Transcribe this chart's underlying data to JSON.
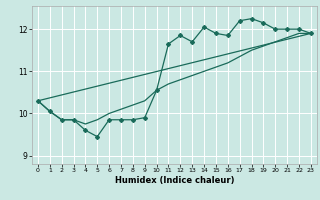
{
  "xlabel": "Humidex (Indice chaleur)",
  "bg_color": "#cbe8e3",
  "line_color": "#1a6b5a",
  "grid_color": "#ffffff",
  "xlim": [
    -0.5,
    23.5
  ],
  "ylim": [
    8.8,
    12.55
  ],
  "yticks": [
    9,
    10,
    11,
    12
  ],
  "xticks": [
    0,
    1,
    2,
    3,
    4,
    5,
    6,
    7,
    8,
    9,
    10,
    11,
    12,
    13,
    14,
    15,
    16,
    17,
    18,
    19,
    20,
    21,
    22,
    23
  ],
  "series1_x": [
    0,
    1,
    2,
    3,
    4,
    5,
    6,
    7,
    8,
    9,
    10,
    11,
    12,
    13,
    14,
    15,
    16,
    17,
    18,
    19,
    20,
    21,
    22,
    23
  ],
  "series1_y": [
    10.3,
    10.05,
    9.85,
    9.85,
    9.6,
    9.45,
    9.85,
    9.85,
    9.85,
    9.9,
    10.55,
    11.65,
    11.85,
    11.7,
    12.05,
    11.9,
    11.85,
    12.2,
    12.25,
    12.15,
    12.0,
    12.0,
    12.0,
    11.9
  ],
  "series2_x": [
    0,
    1,
    2,
    3,
    4,
    5,
    6,
    7,
    8,
    9,
    10,
    11,
    12,
    13,
    14,
    15,
    16,
    17,
    18,
    19,
    20,
    21,
    22,
    23
  ],
  "series2_y": [
    10.3,
    10.05,
    9.85,
    9.85,
    9.75,
    9.85,
    10.0,
    10.1,
    10.2,
    10.3,
    10.55,
    10.7,
    10.8,
    10.9,
    11.0,
    11.1,
    11.2,
    11.35,
    11.5,
    11.6,
    11.7,
    11.8,
    11.9,
    11.9
  ],
  "series3_x": [
    0,
    23
  ],
  "series3_y": [
    10.3,
    11.9
  ]
}
